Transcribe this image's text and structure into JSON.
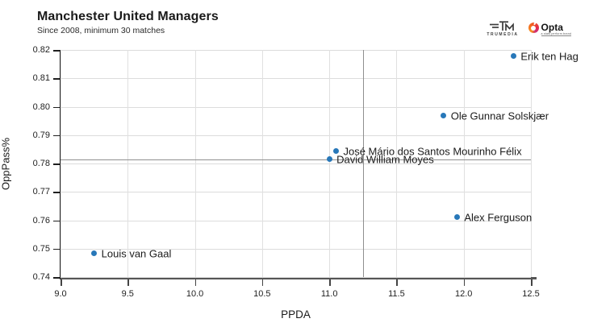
{
  "header": {
    "title": "Manchester United Managers",
    "subtitle": "Since 2008, minimum 30 matches"
  },
  "branding": {
    "trumedia_label": "TRUMEDIA",
    "opta_label": "Opta",
    "opta_tagline": "a stats perform brand"
  },
  "chart_data": {
    "type": "scatter",
    "title": "Manchester United Managers",
    "subtitle": "Since 2008, minimum 30 matches",
    "xlabel": "PPDA",
    "ylabel": "OppPass%",
    "xlim": [
      9.0,
      12.5
    ],
    "ylim": [
      0.74,
      0.82
    ],
    "x_ticks": [
      9.0,
      9.5,
      10.0,
      10.5,
      11.0,
      11.5,
      12.0,
      12.5
    ],
    "y_ticks": [
      0.74,
      0.75,
      0.76,
      0.77,
      0.78,
      0.79,
      0.8,
      0.81,
      0.82
    ],
    "grid": true,
    "legend": "none",
    "reference_lines": {
      "x": 11.25,
      "y": 0.7815
    },
    "point_color": "#2878b9",
    "points": [
      {
        "label": "Erik ten Hag",
        "x": 12.37,
        "y": 0.818
      },
      {
        "label": "Ole Gunnar Solskjær",
        "x": 11.85,
        "y": 0.797
      },
      {
        "label": "José Mário dos Santos Mourinho Félix",
        "x": 11.05,
        "y": 0.7845
      },
      {
        "label": "David William Moyes",
        "x": 11.0,
        "y": 0.7815
      },
      {
        "label": "Alex Ferguson",
        "x": 11.95,
        "y": 0.761
      },
      {
        "label": "Louis van Gaal",
        "x": 9.25,
        "y": 0.7485
      }
    ]
  },
  "colors": {
    "point": "#2878b9",
    "gridline": "#dcdcdc",
    "reference_line": "#8f8f8f",
    "axis": "#1f1f1f"
  }
}
